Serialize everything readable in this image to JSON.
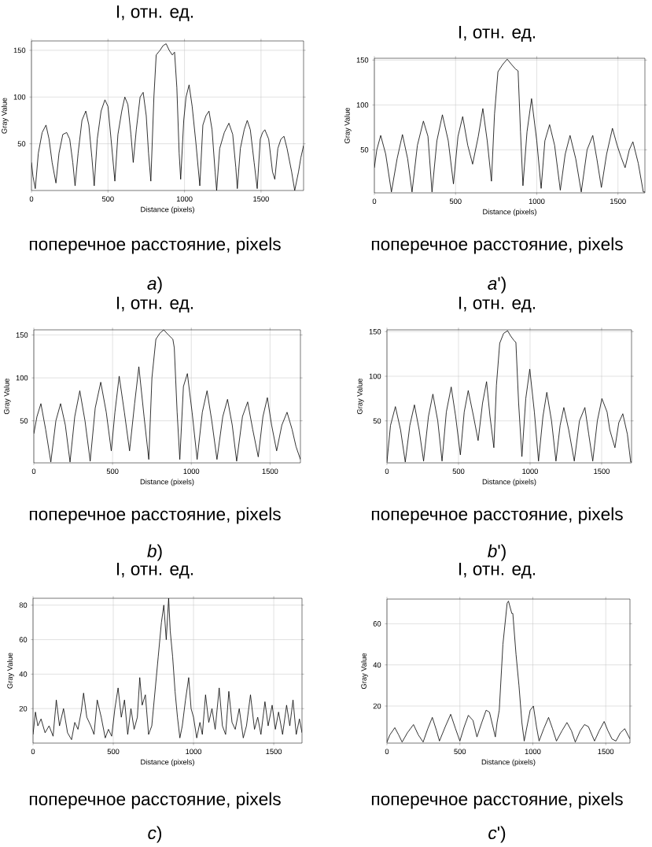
{
  "chart_data": [
    {
      "type": "line",
      "title": "I, отн. ед.",
      "xlabel": "Distance (pixels)",
      "ylabel": "Gray Value",
      "annotations": [
        "поперечное расстояние, pixels",
        "*a*)"
      ],
      "color": "#000000",
      "grid": true,
      "xlim": [
        0,
        1778
      ],
      "ylim": [
        0,
        160
      ],
      "xticks": [
        0,
        500,
        1000,
        1500
      ],
      "yticks": [
        50,
        100,
        150
      ],
      "x": [
        0,
        10,
        25,
        45,
        70,
        95,
        115,
        135,
        160,
        180,
        205,
        230,
        250,
        270,
        285,
        305,
        330,
        355,
        375,
        395,
        410,
        430,
        455,
        480,
        500,
        520,
        545,
        565,
        590,
        610,
        630,
        650,
        665,
        685,
        710,
        730,
        750,
        765,
        780,
        800,
        815,
        840,
        860,
        880,
        900,
        920,
        935,
        950,
        965,
        975,
        995,
        1010,
        1030,
        1050,
        1075,
        1100,
        1120,
        1140,
        1160,
        1180,
        1200,
        1210,
        1230,
        1260,
        1290,
        1315,
        1335,
        1345,
        1365,
        1390,
        1410,
        1430,
        1455,
        1475,
        1495,
        1510,
        1525,
        1550,
        1575,
        1590,
        1610,
        1630,
        1650,
        1670,
        1700,
        1720,
        1745,
        1760,
        1778
      ],
      "values": [
        30,
        15,
        2,
        40,
        62,
        70,
        55,
        30,
        8,
        40,
        60,
        62,
        55,
        30,
        5,
        40,
        75,
        85,
        70,
        35,
        5,
        55,
        85,
        97,
        90,
        55,
        10,
        60,
        85,
        100,
        92,
        60,
        30,
        65,
        100,
        105,
        80,
        40,
        10,
        100,
        145,
        150,
        155,
        157,
        150,
        145,
        148,
        110,
        40,
        12,
        75,
        100,
        113,
        90,
        50,
        5,
        70,
        80,
        85,
        65,
        20,
        0,
        45,
        62,
        72,
        60,
        25,
        2,
        45,
        65,
        75,
        65,
        30,
        2,
        55,
        62,
        65,
        55,
        20,
        12,
        45,
        55,
        58,
        45,
        20,
        0,
        20,
        35,
        48
      ]
    },
    {
      "type": "line",
      "title": "I, отн. ед.",
      "xlabel": "Distance (pixels)",
      "ylabel": "Gray Value",
      "annotations": [
        "поперечное расстояние, pixels",
        "*a*')"
      ],
      "color": "#000000",
      "grid": true,
      "xlim": [
        0,
        1666
      ],
      "ylim": [
        2,
        152
      ],
      "xticks": [
        0,
        500,
        1000,
        1500
      ],
      "yticks": [
        50,
        100,
        150
      ],
      "x": [
        0,
        15,
        39,
        70,
        105,
        140,
        173,
        205,
        232,
        265,
        302,
        330,
        355,
        385,
        419,
        455,
        487,
        515,
        544,
        575,
        605,
        640,
        668,
        695,
        721,
        740,
        761,
        790,
        818,
        845,
        869,
        885,
        900,
        915,
        940,
        968,
        1000,
        1027,
        1050,
        1079,
        1110,
        1145,
        1175,
        1205,
        1240,
        1274,
        1310,
        1345,
        1370,
        1398,
        1430,
        1466,
        1495,
        1519,
        1544,
        1570,
        1592,
        1625,
        1656,
        1666
      ],
      "values": [
        30,
        50,
        66,
        45,
        3,
        40,
        67,
        40,
        3,
        55,
        82,
        65,
        3,
        60,
        89,
        60,
        12,
        65,
        87,
        55,
        34,
        65,
        96,
        60,
        15,
        90,
        137,
        145,
        151,
        145,
        140,
        138,
        70,
        10,
        70,
        107,
        60,
        7,
        60,
        78,
        55,
        5,
        45,
        66,
        40,
        3,
        50,
        66,
        40,
        8,
        45,
        74,
        55,
        42,
        30,
        50,
        59,
        35,
        3,
        3
      ]
    },
    {
      "type": "line",
      "title": "I, отн. ед.",
      "xlabel": "Distance (pixels)",
      "ylabel": "Gray Value",
      "annotations": [
        "поперечное расстояние, pixels",
        "*b*)"
      ],
      "color": "#000000",
      "grid": true,
      "xlim": [
        0,
        1693
      ],
      "ylim": [
        1,
        156
      ],
      "xticks": [
        0,
        500,
        1000,
        1500
      ],
      "yticks": [
        50,
        100,
        150
      ],
      "x": [
        0,
        20,
        45,
        75,
        108,
        140,
        170,
        200,
        230,
        260,
        292,
        325,
        358,
        390,
        425,
        460,
        492,
        515,
        542,
        575,
        608,
        640,
        667,
        700,
        730,
        750,
        775,
        800,
        825,
        855,
        883,
        892,
        910,
        927,
        950,
        975,
        1005,
        1037,
        1070,
        1100,
        1130,
        1163,
        1200,
        1230,
        1260,
        1288,
        1325,
        1358,
        1390,
        1425,
        1455,
        1483,
        1510,
        1542,
        1575,
        1608,
        1640,
        1665,
        1693
      ],
      "values": [
        35,
        55,
        70,
        40,
        2,
        50,
        70,
        45,
        2,
        55,
        85,
        50,
        3,
        65,
        95,
        60,
        15,
        60,
        102,
        60,
        15,
        70,
        113,
        55,
        5,
        100,
        145,
        152,
        156,
        150,
        145,
        135,
        60,
        5,
        90,
        105,
        60,
        5,
        60,
        85,
        50,
        5,
        55,
        75,
        45,
        3,
        55,
        72,
        40,
        8,
        55,
        77,
        45,
        15,
        45,
        60,
        40,
        20,
        5
      ]
    },
    {
      "type": "line",
      "title": "I, отн. ед.",
      "xlabel": "Distance (pixels)",
      "ylabel": "Gray Value",
      "annotations": [
        "поперечное расстояние, pixels",
        "*b*')"
      ],
      "color": "#000000",
      "grid": true,
      "xlim": [
        0,
        1709
      ],
      "ylim": [
        3,
        152
      ],
      "xticks": [
        0,
        500,
        1000,
        1500
      ],
      "yticks": [
        50,
        100,
        150
      ],
      "x": [
        0,
        25,
        59,
        95,
        128,
        160,
        192,
        225,
        256,
        290,
        321,
        355,
        385,
        415,
        449,
        480,
        513,
        540,
        568,
        605,
        637,
        668,
        696,
        720,
        747,
        765,
        788,
        815,
        843,
        865,
        888,
        901,
        920,
        943,
        970,
        998,
        1030,
        1059,
        1090,
        1117,
        1150,
        1181,
        1210,
        1236,
        1270,
        1309,
        1345,
        1383,
        1410,
        1438,
        1470,
        1502,
        1538,
        1557,
        1593,
        1620,
        1648,
        1680,
        1703,
        1709
      ],
      "values": [
        4,
        45,
        66,
        40,
        4,
        45,
        68,
        40,
        5,
        55,
        80,
        50,
        5,
        60,
        88,
        55,
        12,
        60,
        84,
        55,
        28,
        70,
        94,
        55,
        20,
        90,
        137,
        148,
        151,
        145,
        140,
        138,
        70,
        10,
        75,
        108,
        60,
        5,
        55,
        82,
        50,
        5,
        45,
        65,
        40,
        5,
        50,
        65,
        35,
        5,
        50,
        75,
        60,
        40,
        20,
        48,
        58,
        35,
        4,
        4
      ]
    },
    {
      "type": "line",
      "title": "I, отн. ед.",
      "xlabel": "Distance (pixels)",
      "ylabel": "Gray Value",
      "annotations": [
        "поперечное расстояние, pixels",
        "*c*)"
      ],
      "color": "#000000",
      "grid": true,
      "xlim": [
        0,
        1676
      ],
      "ylim": [
        0,
        84
      ],
      "xticks": [
        0,
        500,
        1000,
        1500
      ],
      "yticks": [
        20,
        40,
        60,
        80
      ],
      "x": [
        0,
        15,
        30,
        50,
        75,
        100,
        125,
        145,
        165,
        190,
        215,
        240,
        260,
        280,
        300,
        315,
        335,
        360,
        380,
        400,
        425,
        450,
        470,
        490,
        510,
        530,
        550,
        570,
        590,
        610,
        630,
        650,
        665,
        680,
        700,
        720,
        740,
        760,
        780,
        800,
        815,
        830,
        845,
        855,
        870,
        885,
        900,
        915,
        930,
        950,
        970,
        985,
        1000,
        1020,
        1040,
        1055,
        1075,
        1095,
        1115,
        1135,
        1160,
        1180,
        1200,
        1220,
        1240,
        1260,
        1285,
        1310,
        1330,
        1355,
        1380,
        1400,
        1420,
        1445,
        1465,
        1490,
        1510,
        1530,
        1555,
        1580,
        1600,
        1620,
        1640,
        1660,
        1676
      ],
      "values": [
        5,
        18,
        10,
        14,
        6,
        10,
        4,
        25,
        10,
        20,
        6,
        2,
        12,
        8,
        18,
        29,
        15,
        10,
        5,
        25,
        15,
        3,
        8,
        4,
        20,
        32,
        15,
        25,
        5,
        20,
        8,
        15,
        38,
        22,
        28,
        5,
        10,
        30,
        50,
        70,
        80,
        60,
        84,
        65,
        50,
        30,
        15,
        3,
        10,
        25,
        38,
        20,
        15,
        3,
        12,
        5,
        28,
        12,
        20,
        8,
        32,
        10,
        5,
        30,
        12,
        8,
        20,
        3,
        10,
        28,
        8,
        15,
        5,
        24,
        10,
        22,
        8,
        18,
        5,
        22,
        10,
        25,
        5,
        14,
        6
      ]
    },
    {
      "type": "line",
      "title": "I, отн. ед.",
      "xlabel": "Distance (pixels)",
      "ylabel": "Gray Value",
      "annotations": [
        "поперечное расстояние, pixels",
        "*c*')"
      ],
      "color": "#000000",
      "grid": true,
      "xlim": [
        0,
        1666
      ],
      "ylim": [
        2,
        72
      ],
      "xticks": [
        0,
        500,
        1000,
        1500
      ],
      "yticks": [
        20,
        40,
        60
      ],
      "x": [
        0,
        20,
        54,
        80,
        104,
        140,
        182,
        215,
        248,
        280,
        311,
        340,
        360,
        400,
        437,
        470,
        500,
        530,
        558,
        590,
        617,
        650,
        680,
        703,
        743,
        755,
        770,
        795,
        824,
        833,
        856,
        863,
        885,
        905,
        925,
        941,
        960,
        982,
        1004,
        1025,
        1043,
        1075,
        1108,
        1135,
        1162,
        1200,
        1234,
        1265,
        1291,
        1325,
        1354,
        1381,
        1423,
        1455,
        1489,
        1515,
        1543,
        1570,
        1600,
        1630,
        1666
      ],
      "values": [
        2.5,
        6,
        9.5,
        6,
        2.5,
        7,
        11,
        6,
        2.5,
        9,
        14.5,
        8,
        3,
        10,
        16,
        9,
        3,
        10,
        15.5,
        13,
        5,
        12,
        18,
        17,
        5,
        12,
        18,
        50,
        70,
        71,
        65,
        65,
        45,
        30,
        12,
        3,
        10,
        18,
        20,
        10,
        3,
        9,
        14.5,
        9,
        3,
        8,
        12,
        8,
        2.5,
        8,
        11,
        10,
        3,
        8,
        12.5,
        8,
        4,
        3,
        7,
        9,
        4
      ]
    }
  ]
}
